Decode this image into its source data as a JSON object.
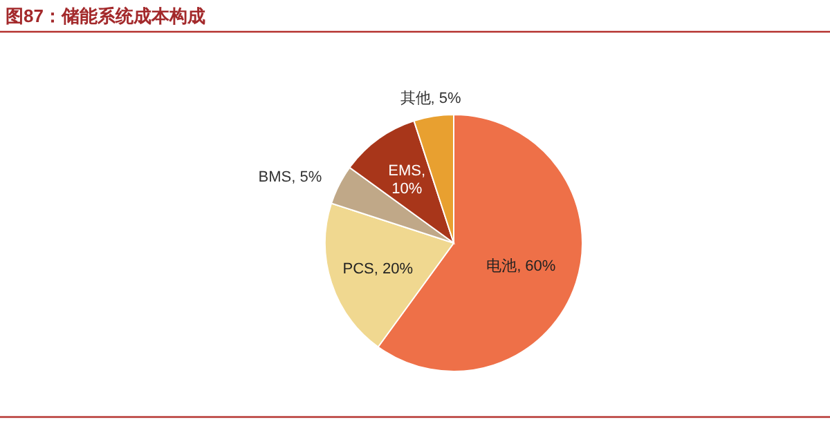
{
  "chart_data": {
    "type": "pie",
    "title": "图87：储能系统成本构成",
    "categories": [
      "电池, 60%",
      "PCS, 20%",
      "BMS, 5%",
      "EMS, 10%",
      "其他, 5%"
    ],
    "values": [
      60,
      20,
      5,
      10,
      5
    ],
    "colors": [
      "#ee7048",
      "#f0d890",
      "#c0a888",
      "#a8361a",
      "#e8a030"
    ],
    "legend": false
  }
}
